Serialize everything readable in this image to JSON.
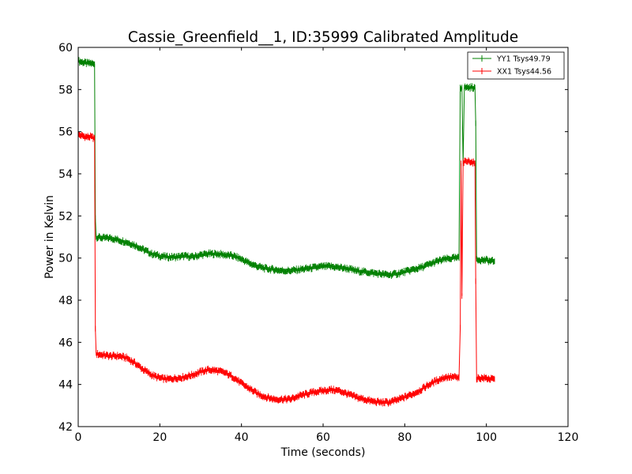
{
  "chart_data": {
    "type": "line",
    "title": "Cassie_Greenfield__1, ID:35999 Calibrated Amplitude",
    "xlabel": "Time (seconds)",
    "ylabel": "Power in Kelvin",
    "xlim": [
      0,
      120
    ],
    "ylim": [
      42,
      60
    ],
    "x_ticks": [
      0,
      20,
      40,
      60,
      80,
      100,
      120
    ],
    "y_ticks": [
      42,
      44,
      46,
      48,
      50,
      52,
      54,
      56,
      58,
      60
    ],
    "grid": false,
    "legend_position": "top-right",
    "series": [
      {
        "name": "YY1 Tsys49.79",
        "color": "#008000",
        "points": [
          [
            0,
            59.35
          ],
          [
            1,
            59.3
          ],
          [
            2,
            59.25
          ],
          [
            3,
            59.25
          ],
          [
            4,
            59.2
          ],
          [
            4.2,
            51.9
          ],
          [
            4.4,
            51.0
          ],
          [
            6,
            50.95
          ],
          [
            8,
            50.95
          ],
          [
            10,
            50.85
          ],
          [
            12,
            50.75
          ],
          [
            14,
            50.6
          ],
          [
            16,
            50.4
          ],
          [
            18,
            50.2
          ],
          [
            20,
            50.1
          ],
          [
            22,
            50.05
          ],
          [
            24,
            50.05
          ],
          [
            26,
            50.1
          ],
          [
            28,
            50.05
          ],
          [
            30,
            50.15
          ],
          [
            32,
            50.2
          ],
          [
            34,
            50.2
          ],
          [
            36,
            50.15
          ],
          [
            38,
            50.1
          ],
          [
            40,
            49.95
          ],
          [
            42,
            49.75
          ],
          [
            44,
            49.6
          ],
          [
            46,
            49.5
          ],
          [
            48,
            49.45
          ],
          [
            50,
            49.4
          ],
          [
            52,
            49.4
          ],
          [
            54,
            49.45
          ],
          [
            56,
            49.5
          ],
          [
            58,
            49.55
          ],
          [
            60,
            49.6
          ],
          [
            62,
            49.6
          ],
          [
            64,
            49.55
          ],
          [
            66,
            49.5
          ],
          [
            68,
            49.4
          ],
          [
            70,
            49.35
          ],
          [
            72,
            49.3
          ],
          [
            74,
            49.25
          ],
          [
            76,
            49.2
          ],
          [
            78,
            49.25
          ],
          [
            80,
            49.35
          ],
          [
            82,
            49.45
          ],
          [
            84,
            49.55
          ],
          [
            86,
            49.7
          ],
          [
            88,
            49.85
          ],
          [
            90,
            49.95
          ],
          [
            92,
            50.0
          ],
          [
            93.3,
            50.0
          ],
          [
            93.6,
            58.1
          ],
          [
            94.0,
            58.1
          ],
          [
            94.3,
            54.5
          ],
          [
            94.6,
            58.1
          ],
          [
            96,
            58.1
          ],
          [
            97.2,
            58.1
          ],
          [
            97.4,
            56.4
          ],
          [
            97.6,
            49.95
          ],
          [
            99,
            49.9
          ],
          [
            100,
            49.9
          ],
          [
            101,
            49.85
          ],
          [
            102,
            49.85
          ]
        ]
      },
      {
        "name": "XX1 Tsys44.56",
        "color": "#ff0000",
        "points": [
          [
            0,
            55.85
          ],
          [
            1,
            55.8
          ],
          [
            2,
            55.75
          ],
          [
            3,
            55.75
          ],
          [
            4,
            55.7
          ],
          [
            4.2,
            46.65
          ],
          [
            4.4,
            45.45
          ],
          [
            6,
            45.4
          ],
          [
            8,
            45.35
          ],
          [
            10,
            45.35
          ],
          [
            12,
            45.25
          ],
          [
            14,
            45.0
          ],
          [
            16,
            44.7
          ],
          [
            18,
            44.45
          ],
          [
            20,
            44.3
          ],
          [
            22,
            44.25
          ],
          [
            24,
            44.3
          ],
          [
            26,
            44.35
          ],
          [
            28,
            44.45
          ],
          [
            30,
            44.6
          ],
          [
            32,
            44.7
          ],
          [
            34,
            44.65
          ],
          [
            36,
            44.55
          ],
          [
            38,
            44.35
          ],
          [
            40,
            44.05
          ],
          [
            42,
            43.8
          ],
          [
            44,
            43.55
          ],
          [
            46,
            43.4
          ],
          [
            48,
            43.3
          ],
          [
            50,
            43.3
          ],
          [
            52,
            43.3
          ],
          [
            54,
            43.45
          ],
          [
            56,
            43.55
          ],
          [
            58,
            43.65
          ],
          [
            60,
            43.7
          ],
          [
            62,
            43.75
          ],
          [
            64,
            43.7
          ],
          [
            66,
            43.55
          ],
          [
            68,
            43.4
          ],
          [
            70,
            43.3
          ],
          [
            72,
            43.2
          ],
          [
            74,
            43.15
          ],
          [
            76,
            43.15
          ],
          [
            78,
            43.25
          ],
          [
            80,
            43.4
          ],
          [
            82,
            43.55
          ],
          [
            84,
            43.75
          ],
          [
            86,
            44.0
          ],
          [
            88,
            44.2
          ],
          [
            90,
            44.35
          ],
          [
            92,
            44.35
          ],
          [
            93.3,
            44.3
          ],
          [
            93.6,
            46.7
          ],
          [
            93.8,
            54.5
          ],
          [
            94.0,
            48.2
          ],
          [
            94.3,
            54.55
          ],
          [
            96,
            54.6
          ],
          [
            97.2,
            54.5
          ],
          [
            97.4,
            48.9
          ],
          [
            97.6,
            44.3
          ],
          [
            99,
            44.3
          ],
          [
            100,
            44.3
          ],
          [
            101,
            44.25
          ],
          [
            102,
            44.25
          ]
        ]
      }
    ]
  }
}
